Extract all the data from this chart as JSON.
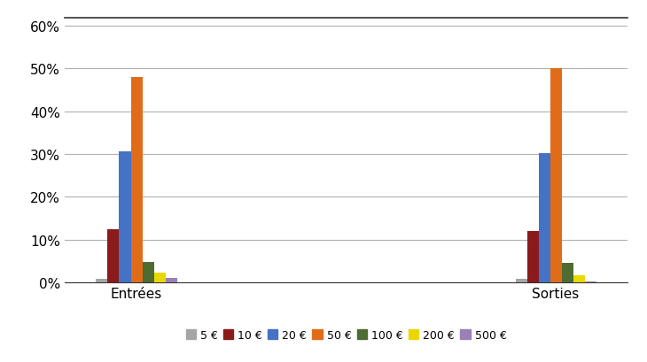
{
  "categories": [
    "Entrées",
    "Sorties"
  ],
  "series": [
    {
      "label": "5 €",
      "color": "#a5a5a5",
      "values": [
        0.7,
        0.7
      ]
    },
    {
      "label": "10 €",
      "color": "#8B1A1A",
      "values": [
        12.3,
        12.0
      ]
    },
    {
      "label": "20 €",
      "color": "#4472C4",
      "values": [
        30.7,
        30.3
      ]
    },
    {
      "label": "50 €",
      "color": "#E06C1A",
      "values": [
        48.0,
        50.0
      ]
    },
    {
      "label": "100 €",
      "color": "#4E6B31",
      "values": [
        4.8,
        4.5
      ]
    },
    {
      "label": "200 €",
      "color": "#E8D800",
      "values": [
        2.3,
        1.7
      ]
    },
    {
      "label": "500 €",
      "color": "#9B7FB6",
      "values": [
        0.9,
        0.2
      ]
    }
  ],
  "ylim": [
    0,
    0.62
  ],
  "yticks": [
    0.0,
    0.1,
    0.2,
    0.3,
    0.4,
    0.5,
    0.6
  ],
  "ytick_labels": [
    "0%",
    "10%",
    "20%",
    "30%",
    "40%",
    "50%",
    "60%"
  ],
  "bar_width": 0.055,
  "background_color": "#ffffff",
  "grid_color": "#b0b0b0",
  "legend_fontsize": 9,
  "axis_fontsize": 11
}
